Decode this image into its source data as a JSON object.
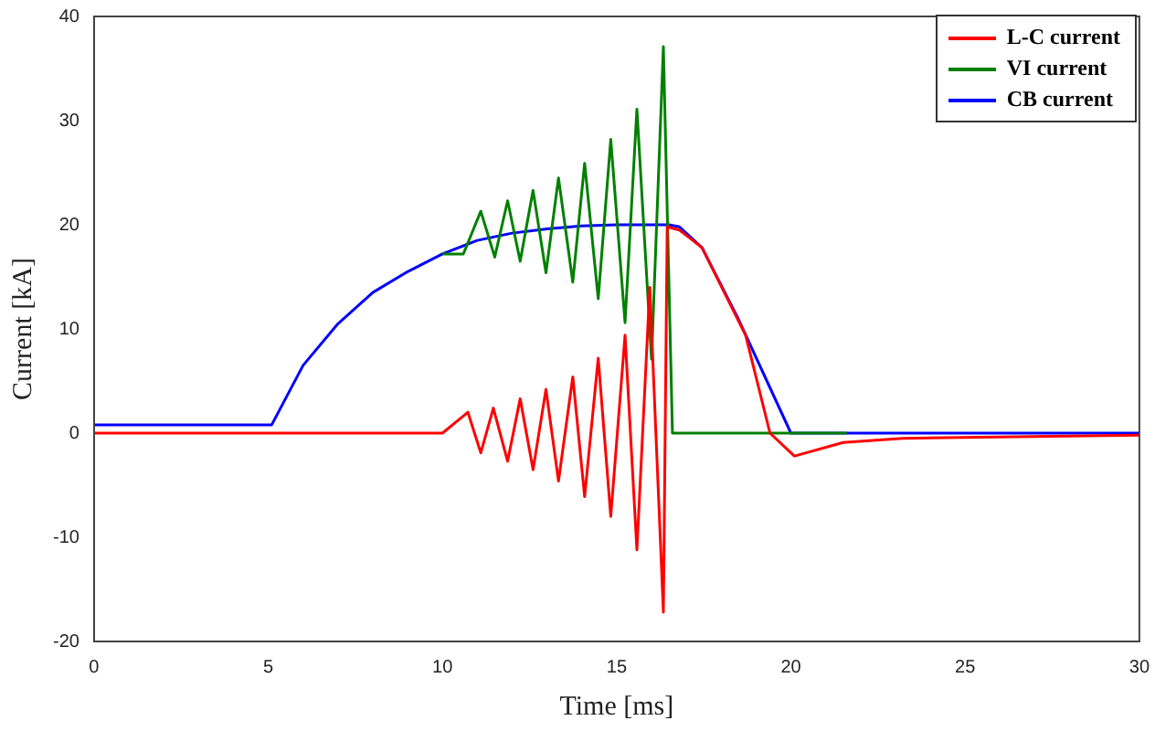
{
  "chart_data": {
    "type": "line",
    "xlabel": "Time [ms]",
    "ylabel": "Current [kA]",
    "xlim": [
      0,
      30
    ],
    "xticks": [
      0,
      5,
      10,
      15,
      20,
      25,
      30
    ],
    "ylim": [
      -20,
      40
    ],
    "yticks": [
      -20,
      -10,
      0,
      10,
      20,
      30,
      40
    ],
    "grid": false,
    "legend": "top right",
    "marker": "none",
    "line_style": "solid",
    "series": [
      {
        "name": "L-C current",
        "color": "#ff0000",
        "x": [
          0,
          10,
          10.73,
          11.1,
          11.46,
          11.87,
          12.23,
          12.6,
          12.97,
          13.33,
          13.74,
          14.08,
          14.47,
          14.83,
          15.24,
          15.58,
          15.95,
          16.34,
          16.45,
          16.8,
          17.45,
          18.7,
          19.4,
          20.1,
          21.5,
          23.2,
          25.4,
          30
        ],
        "values": [
          0,
          0,
          2,
          -1.9,
          2.4,
          -2.7,
          3.3,
          -3.5,
          4.2,
          -4.6,
          5.4,
          -6.1,
          7.2,
          -8,
          9.4,
          -11.2,
          14,
          -17.2,
          19.8,
          19.5,
          17.8,
          9.4,
          0,
          -2.2,
          -0.9,
          -0.5,
          -0.4,
          -0.2
        ]
      },
      {
        "name": "VI current",
        "color": "#008000",
        "x": [
          10,
          10.6,
          11.1,
          11.5,
          11.87,
          12.23,
          12.6,
          12.97,
          13.33,
          13.74,
          14.08,
          14.47,
          14.83,
          15.24,
          15.58,
          16,
          16.34,
          16.6,
          21.6
        ],
        "values": [
          17.2,
          17.2,
          21.3,
          16.9,
          22.3,
          16.5,
          23.3,
          15.4,
          24.5,
          14.5,
          25.9,
          12.9,
          28.2,
          10.6,
          31.1,
          7.1,
          37.1,
          0,
          0
        ]
      },
      {
        "name": "CB current",
        "color": "#0000ff",
        "x": [
          0,
          5.1,
          6,
          7,
          8,
          9,
          10,
          11,
          12,
          13,
          14,
          15,
          16.5,
          16.8,
          17.45,
          18.47,
          20,
          30
        ],
        "values": [
          0.8,
          0.8,
          6.5,
          10.5,
          13.5,
          15.5,
          17.2,
          18.5,
          19.2,
          19.6,
          19.9,
          20,
          20,
          19.8,
          17.8,
          11.1,
          0,
          0
        ]
      }
    ]
  }
}
